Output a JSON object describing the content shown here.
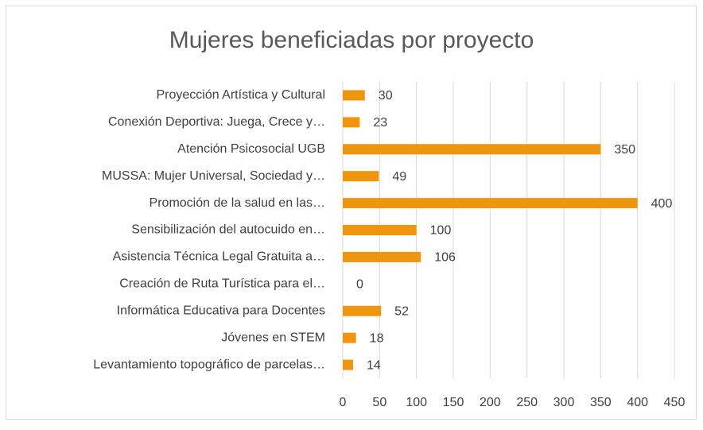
{
  "chart_data": {
    "type": "bar",
    "orientation": "horizontal",
    "title": "Mujeres beneficiadas por proyecto",
    "categories": [
      "Proyección Artística y Cultural",
      "Conexión Deportiva: Juega, Crece y…",
      "Atención Psicosocial UGB",
      "MUSSA: Mujer Universal, Sociedad y…",
      "Promoción de la salud en las…",
      "Sensibilización del autocuido en…",
      "Asistencia Técnica Legal Gratuita a…",
      "Creación de Ruta Turística para el…",
      "Informática Educativa para Docentes",
      "Jóvenes en STEM",
      "Levantamiento topográfico de parcelas…"
    ],
    "values": [
      30,
      23,
      350,
      49,
      400,
      100,
      106,
      0,
      52,
      18,
      14
    ],
    "color": "#f0960e",
    "xlim": [
      0,
      450
    ],
    "xticks": [
      0,
      50,
      100,
      150,
      200,
      250,
      300,
      350,
      400,
      450
    ],
    "grid": true
  }
}
